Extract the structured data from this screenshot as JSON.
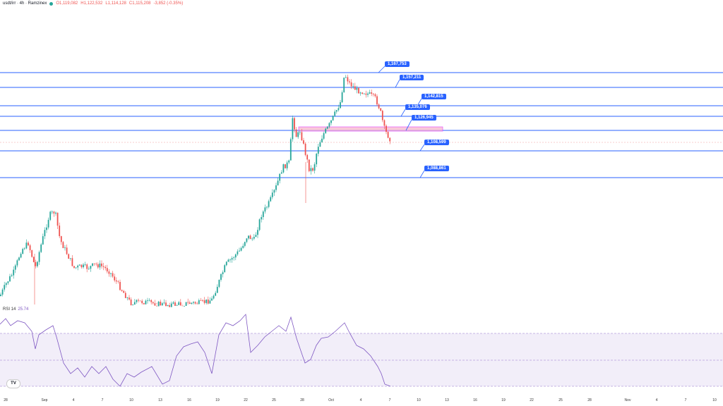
{
  "legend": {
    "symbol": "usdt/irr · 4h · Ramzinex",
    "open": "O1,119,082",
    "high": "H1,122,532",
    "low": "L1,114,128",
    "close": "C1,115,208",
    "change": "-3,852 (-0.35%)"
  },
  "rsi": {
    "label": "RSI 14",
    "value": "25.74"
  },
  "logo_text": "TV",
  "colors": {
    "up": "#26a69a",
    "down": "#ef5350",
    "level": "#2962ff",
    "rsi": "#7e57c2",
    "zone": "#e040fb"
  },
  "chart_data": {
    "type": "candlestick",
    "levels": [
      "1,167,753",
      "1,157,211",
      "1,142,815",
      "1,135,076",
      "1,126,945",
      "1,108,599",
      "1,088,861"
    ],
    "x_ticks": [
      "28",
      "Sep",
      "4",
      "7",
      "10",
      "13",
      "16",
      "19",
      "22",
      "25",
      "28",
      "Oct",
      "4",
      "7",
      "10",
      "13",
      "16",
      "19",
      "22",
      "25",
      "28",
      "Nov",
      "4",
      "7",
      "10"
    ]
  }
}
